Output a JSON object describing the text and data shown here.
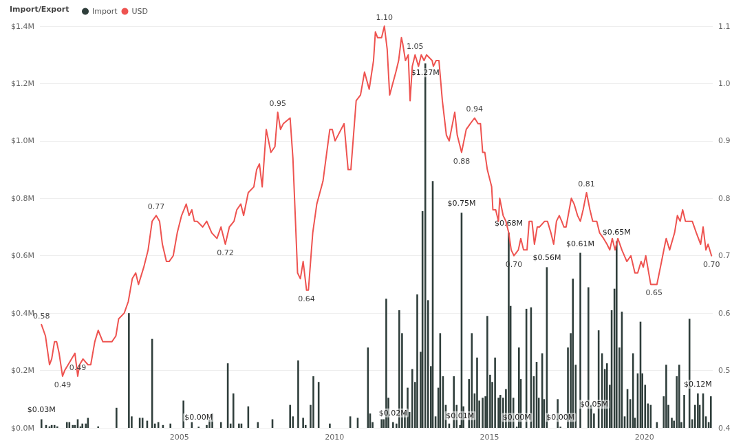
{
  "chart_data": {
    "type": "bar",
    "legend_title": "Import/Export",
    "legend": "top left",
    "grid": "y",
    "marker": "none",
    "xlim": [
      2000.5,
      2022.2
    ],
    "xticks": [
      2005,
      2010,
      2015,
      2020
    ],
    "ylim": [
      0,
      1.4
    ],
    "yticks": [
      {
        "value": 0,
        "label": "$0.0M"
      },
      {
        "value": 0.2,
        "label": "$0.2M"
      },
      {
        "value": 0.4,
        "label": "$0.4M"
      },
      {
        "value": 0.6,
        "label": "$0.6M"
      },
      {
        "value": 0.8,
        "label": "$0.8M"
      },
      {
        "value": 1,
        "label": "$1.0M"
      },
      {
        "value": 1.2,
        "label": "$1.2M"
      },
      {
        "value": 1.4,
        "label": "$1.4M"
      }
    ],
    "y2lim": [
      0.4,
      1.1
    ],
    "y2ticks": [
      0.4,
      0.5,
      0.6,
      0.7,
      0.8,
      0.9,
      {
        "value": 1,
        "label": "1.0"
      },
      1.1
    ],
    "series": [
      {
        "name": "Import",
        "color": "#2f3e3b",
        "x": [
          2000.55,
          2000.7,
          2000.81,
          2000.88,
          2000.97,
          2001.06,
          2001.37,
          2001.45,
          2001.56,
          2001.63,
          2001.72,
          2001.81,
          2001.87,
          2001.98,
          2002.05,
          2002.38,
          2002.97,
          2003.37,
          2003.46,
          2003.72,
          2003.81,
          2003.96,
          2004.12,
          2004.21,
          2004.32,
          2004.47,
          2004.71,
          2005.13,
          2005.4,
          2005.62,
          2005.88,
          2005.97,
          2006.06,
          2006.34,
          2006.56,
          2006.65,
          2006.74,
          2006.92,
          2007.0,
          2007.22,
          2007.53,
          2008.0,
          2008.57,
          2008.66,
          2008.83,
          2008.99,
          2009.07,
          2009.23,
          2009.32,
          2009.49,
          2009.85,
          2010.51,
          2010.75,
          2011.08,
          2011.15,
          2011.23,
          2011.52,
          2011.59,
          2011.67,
          2011.74,
          2011.89,
          2012.0,
          2012.09,
          2012.18,
          2012.27,
          2012.36,
          2012.42,
          2012.51,
          2012.6,
          2012.67,
          2012.78,
          2012.84,
          2012.93,
          2013.02,
          2013.11,
          2013.17,
          2013.26,
          2013.35,
          2013.41,
          2013.5,
          2013.59,
          2013.7,
          2013.85,
          2013.94,
          2014.05,
          2014.1,
          2014.16,
          2014.34,
          2014.43,
          2014.52,
          2014.6,
          2014.67,
          2014.78,
          2014.87,
          2014.93,
          2015.02,
          2015.09,
          2015.18,
          2015.29,
          2015.35,
          2015.44,
          2015.53,
          2015.62,
          2015.68,
          2015.77,
          2015.88,
          2015.95,
          2016.01,
          2016.19,
          2016.34,
          2016.43,
          2016.52,
          2016.59,
          2016.7,
          2016.76,
          2016.85,
          2017.2,
          2017.29,
          2017.53,
          2017.62,
          2017.69,
          2017.78,
          2017.93,
          2018.19,
          2018.28,
          2018.37,
          2018.52,
          2018.63,
          2018.72,
          2018.79,
          2018.88,
          2018.94,
          2019.03,
          2019.1,
          2019.19,
          2019.27,
          2019.36,
          2019.45,
          2019.54,
          2019.63,
          2019.69,
          2019.78,
          2019.87,
          2019.93,
          2020.02,
          2020.11,
          2020.2,
          2020.4,
          2020.62,
          2020.7,
          2020.77,
          2020.88,
          2020.95,
          2021.04,
          2021.12,
          2021.19,
          2021.28,
          2021.45,
          2021.54,
          2021.63,
          2021.72,
          2021.78,
          2021.89,
          2021.98,
          2022.07,
          2022.14
        ],
        "values": [
          0.03,
          0.01,
          0.005,
          0.01,
          0.01,
          0.005,
          0.02,
          0.02,
          0.01,
          0.01,
          0.03,
          0.005,
          0.015,
          0.015,
          0.035,
          0.005,
          0.07,
          0.4,
          0.04,
          0.035,
          0.035,
          0.025,
          0.31,
          0.015,
          0.02,
          0.01,
          0.015,
          0.095,
          0.02,
          0.004,
          0.01,
          0.03,
          0.05,
          0.02,
          0.225,
          0.015,
          0.12,
          0.015,
          0.015,
          0.075,
          0.02,
          0.03,
          0.08,
          0.04,
          0.235,
          0.035,
          0.01,
          0.08,
          0.18,
          0.16,
          0.015,
          0.04,
          0.035,
          0.28,
          0.05,
          0.02,
          0.03,
          0.03,
          0.45,
          0.105,
          0.02,
          0.015,
          0.41,
          0.33,
          0.055,
          0.14,
          0.055,
          0.205,
          0.16,
          0.465,
          0.265,
          0.755,
          1.27,
          0.445,
          0.215,
          0.86,
          0.04,
          0.14,
          0.33,
          0.18,
          0.08,
          0.015,
          0.18,
          0.08,
          0.01,
          0.75,
          0.075,
          0.17,
          0.33,
          0.12,
          0.245,
          0.095,
          0.105,
          0.11,
          0.39,
          0.185,
          0.16,
          0.245,
          0.105,
          0.115,
          0.105,
          0.135,
          0.68,
          0.425,
          0.105,
          0.004,
          0.28,
          0.17,
          0.415,
          0.42,
          0.18,
          0.23,
          0.105,
          0.26,
          0.1,
          0.56,
          0.1,
          0.004,
          0.28,
          0.33,
          0.52,
          0.22,
          0.61,
          0.49,
          0.08,
          0.05,
          0.34,
          0.26,
          0.205,
          0.225,
          0.15,
          0.41,
          0.485,
          0.65,
          0.28,
          0.405,
          0.04,
          0.135,
          0.1,
          0.26,
          0.035,
          0.19,
          0.37,
          0.19,
          0.15,
          0.085,
          0.08,
          0.02,
          0.11,
          0.22,
          0.08,
          0.035,
          0.025,
          0.18,
          0.22,
          0.02,
          0.115,
          0.38,
          0.03,
          0.08,
          0.12,
          0.08,
          0.12,
          0.04,
          0.02,
          0.11
        ],
        "value_labels": [
          "$0.03M",
          null,
          null,
          null,
          null,
          null,
          null,
          null,
          null,
          null,
          null,
          null,
          null,
          null,
          null,
          null,
          null,
          null,
          null,
          null,
          null,
          null,
          null,
          null,
          null,
          null,
          null,
          null,
          null,
          "$0.00M",
          null,
          null,
          null,
          null,
          null,
          null,
          null,
          null,
          null,
          null,
          null,
          null,
          null,
          null,
          null,
          null,
          null,
          null,
          null,
          null,
          null,
          null,
          null,
          null,
          null,
          null,
          null,
          null,
          null,
          null,
          "$0.02M",
          null,
          null,
          null,
          null,
          null,
          null,
          null,
          null,
          null,
          null,
          null,
          "$1.27M",
          null,
          null,
          null,
          null,
          null,
          null,
          null,
          null,
          null,
          null,
          null,
          "$0.01M",
          "$0.75M",
          null,
          null,
          null,
          null,
          null,
          null,
          null,
          null,
          null,
          null,
          null,
          null,
          null,
          null,
          null,
          null,
          "$0.68M",
          null,
          null,
          "$0.00M",
          null,
          null,
          null,
          null,
          null,
          null,
          null,
          null,
          null,
          "$0.56M",
          null,
          "$0.00M",
          null,
          null,
          null,
          null,
          "$0.61M",
          null,
          null,
          "$0.05M",
          null,
          null,
          null,
          null,
          null,
          null,
          null,
          "$0.65M",
          null,
          null,
          null,
          null,
          null,
          null,
          null,
          null,
          null,
          null,
          null,
          null,
          null,
          null,
          null,
          null,
          null,
          null,
          null,
          null,
          null,
          null,
          null,
          null,
          null,
          null,
          "$0.12M",
          null,
          null,
          null,
          null,
          null
        ]
      },
      {
        "name": "USD",
        "type": "line",
        "axis": "y2",
        "color": "#ee5350",
        "x": [
          2000.55,
          2000.68,
          2000.81,
          2000.88,
          2000.97,
          2001.04,
          2001.12,
          2001.23,
          2001.3,
          2001.41,
          2001.63,
          2001.72,
          2001.78,
          2001.89,
          2002.05,
          2002.14,
          2002.27,
          2002.38,
          2002.53,
          2002.67,
          2002.82,
          2002.95,
          2003.04,
          2003.22,
          2003.35,
          2003.48,
          2003.59,
          2003.68,
          2003.85,
          2003.99,
          2004.12,
          2004.25,
          2004.36,
          2004.45,
          2004.58,
          2004.67,
          2004.8,
          2004.93,
          2005.07,
          2005.22,
          2005.31,
          2005.4,
          2005.48,
          2005.57,
          2005.75,
          2005.88,
          2006.04,
          2006.21,
          2006.34,
          2006.48,
          2006.61,
          2006.76,
          2006.85,
          2006.98,
          2007.07,
          2007.22,
          2007.4,
          2007.49,
          2007.58,
          2007.67,
          2007.8,
          2007.95,
          2008.08,
          2008.17,
          2008.26,
          2008.35,
          2008.57,
          2008.66,
          2008.81,
          2008.9,
          2008.99,
          2009.1,
          2009.16,
          2009.3,
          2009.43,
          2009.63,
          2009.85,
          2009.93,
          2010.02,
          2010.31,
          2010.44,
          2010.53,
          2010.7,
          2010.84,
          2010.97,
          2011.12,
          2011.26,
          2011.32,
          2011.39,
          2011.52,
          2011.61,
          2011.7,
          2011.78,
          2011.98,
          2012.07,
          2012.16,
          2012.2,
          2012.29,
          2012.38,
          2012.44,
          2012.51,
          2012.6,
          2012.71,
          2012.8,
          2012.89,
          2012.97,
          2013.15,
          2013.19,
          2013.28,
          2013.37,
          2013.48,
          2013.61,
          2013.7,
          2013.88,
          2013.96,
          2014.1,
          2014.25,
          2014.38,
          2014.52,
          2014.63,
          2014.71,
          2014.78,
          2014.85,
          2014.93,
          2015.07,
          2015.11,
          2015.2,
          2015.29,
          2015.33,
          2015.44,
          2015.53,
          2015.62,
          2015.7,
          2015.79,
          2015.93,
          2016.01,
          2016.1,
          2016.21,
          2016.28,
          2016.37,
          2016.45,
          2016.54,
          2016.61,
          2016.78,
          2016.87,
          2016.98,
          2017.07,
          2017.16,
          2017.25,
          2017.33,
          2017.4,
          2017.47,
          2017.64,
          2017.73,
          2017.84,
          2017.93,
          2018.02,
          2018.13,
          2018.24,
          2018.33,
          2018.46,
          2018.55,
          2018.68,
          2018.79,
          2018.88,
          2018.96,
          2019.05,
          2019.14,
          2019.27,
          2019.43,
          2019.56,
          2019.69,
          2019.78,
          2019.89,
          2019.96,
          2020.04,
          2020.2,
          2020.31,
          2020.4,
          2020.55,
          2020.66,
          2020.7,
          2020.81,
          2020.97,
          2021.06,
          2021.15,
          2021.23,
          2021.32,
          2021.45,
          2021.54,
          2021.67,
          2021.81,
          2021.89,
          2021.98,
          2022.05,
          2022.16
        ],
        "values": [
          0.58,
          0.56,
          0.51,
          0.52,
          0.55,
          0.55,
          0.53,
          0.49,
          0.5,
          0.51,
          0.53,
          0.49,
          0.51,
          0.52,
          0.51,
          0.51,
          0.55,
          0.57,
          0.55,
          0.55,
          0.55,
          0.56,
          0.59,
          0.6,
          0.62,
          0.66,
          0.67,
          0.65,
          0.68,
          0.71,
          0.76,
          0.77,
          0.76,
          0.72,
          0.69,
          0.69,
          0.7,
          0.74,
          0.77,
          0.79,
          0.77,
          0.78,
          0.76,
          0.76,
          0.75,
          0.76,
          0.74,
          0.73,
          0.75,
          0.72,
          0.75,
          0.76,
          0.78,
          0.79,
          0.77,
          0.81,
          0.82,
          0.85,
          0.86,
          0.82,
          0.92,
          0.88,
          0.89,
          0.95,
          0.92,
          0.93,
          0.94,
          0.87,
          0.67,
          0.66,
          0.69,
          0.64,
          0.64,
          0.74,
          0.79,
          0.83,
          0.92,
          0.92,
          0.9,
          0.93,
          0.85,
          0.85,
          0.97,
          0.98,
          1.02,
          0.99,
          1.04,
          1.09,
          1.08,
          1.08,
          1.1,
          1.06,
          0.98,
          1.02,
          1.04,
          1.08,
          1.07,
          1.04,
          1.05,
          0.97,
          1.03,
          1.05,
          1.03,
          1.05,
          1.04,
          1.05,
          1.04,
          1.03,
          1.04,
          1.04,
          0.97,
          0.91,
          0.9,
          0.95,
          0.91,
          0.88,
          0.92,
          0.93,
          0.94,
          0.93,
          0.93,
          0.88,
          0.88,
          0.85,
          0.82,
          0.78,
          0.78,
          0.76,
          0.8,
          0.77,
          0.76,
          0.74,
          0.71,
          0.7,
          0.71,
          0.73,
          0.71,
          0.71,
          0.76,
          0.76,
          0.72,
          0.75,
          0.75,
          0.76,
          0.76,
          0.74,
          0.72,
          0.76,
          0.77,
          0.76,
          0.75,
          0.75,
          0.8,
          0.79,
          0.77,
          0.76,
          0.78,
          0.81,
          0.78,
          0.76,
          0.76,
          0.74,
          0.73,
          0.72,
          0.71,
          0.73,
          0.71,
          0.73,
          0.71,
          0.69,
          0.7,
          0.67,
          0.67,
          0.69,
          0.68,
          0.7,
          0.65,
          0.65,
          0.65,
          0.69,
          0.72,
          0.73,
          0.71,
          0.74,
          0.77,
          0.76,
          0.78,
          0.76,
          0.76,
          0.76,
          0.74,
          0.72,
          0.75,
          0.71,
          0.72,
          0.7
        ],
        "value_labels": [
          "0.58",
          null,
          null,
          null,
          null,
          null,
          null,
          "0.49",
          null,
          null,
          null,
          "0.49",
          null,
          null,
          null,
          null,
          null,
          null,
          null,
          null,
          null,
          null,
          null,
          null,
          null,
          null,
          null,
          null,
          null,
          null,
          null,
          "0.77",
          null,
          null,
          null,
          null,
          null,
          null,
          null,
          null,
          null,
          null,
          null,
          null,
          null,
          null,
          null,
          null,
          null,
          "0.72",
          null,
          null,
          null,
          null,
          null,
          null,
          null,
          null,
          null,
          null,
          null,
          null,
          null,
          "0.95",
          null,
          null,
          null,
          null,
          null,
          null,
          null,
          "0.64",
          null,
          null,
          null,
          null,
          null,
          null,
          null,
          null,
          null,
          null,
          null,
          null,
          null,
          null,
          null,
          null,
          null,
          null,
          "1.10",
          null,
          null,
          null,
          null,
          null,
          null,
          null,
          null,
          null,
          null,
          "1.05",
          null,
          null,
          null,
          null,
          null,
          null,
          null,
          null,
          null,
          null,
          null,
          null,
          null,
          "0.88",
          null,
          null,
          "0.94",
          null,
          null,
          null,
          null,
          null,
          null,
          null,
          null,
          null,
          null,
          null,
          null,
          null,
          null,
          "0.70",
          null,
          null,
          null,
          null,
          null,
          null,
          null,
          null,
          null,
          null,
          null,
          null,
          null,
          null,
          null,
          null,
          null,
          null,
          null,
          null,
          null,
          null,
          null,
          "0.81",
          null,
          null,
          null,
          null,
          null,
          null,
          null,
          null,
          null,
          null,
          null,
          null,
          null,
          null,
          null,
          null,
          null,
          null,
          null,
          "0.65",
          null,
          null,
          null,
          null,
          null,
          null,
          null,
          null,
          null,
          null,
          null,
          null,
          null,
          null,
          null,
          null,
          null,
          "0.70"
        ]
      }
    ]
  }
}
